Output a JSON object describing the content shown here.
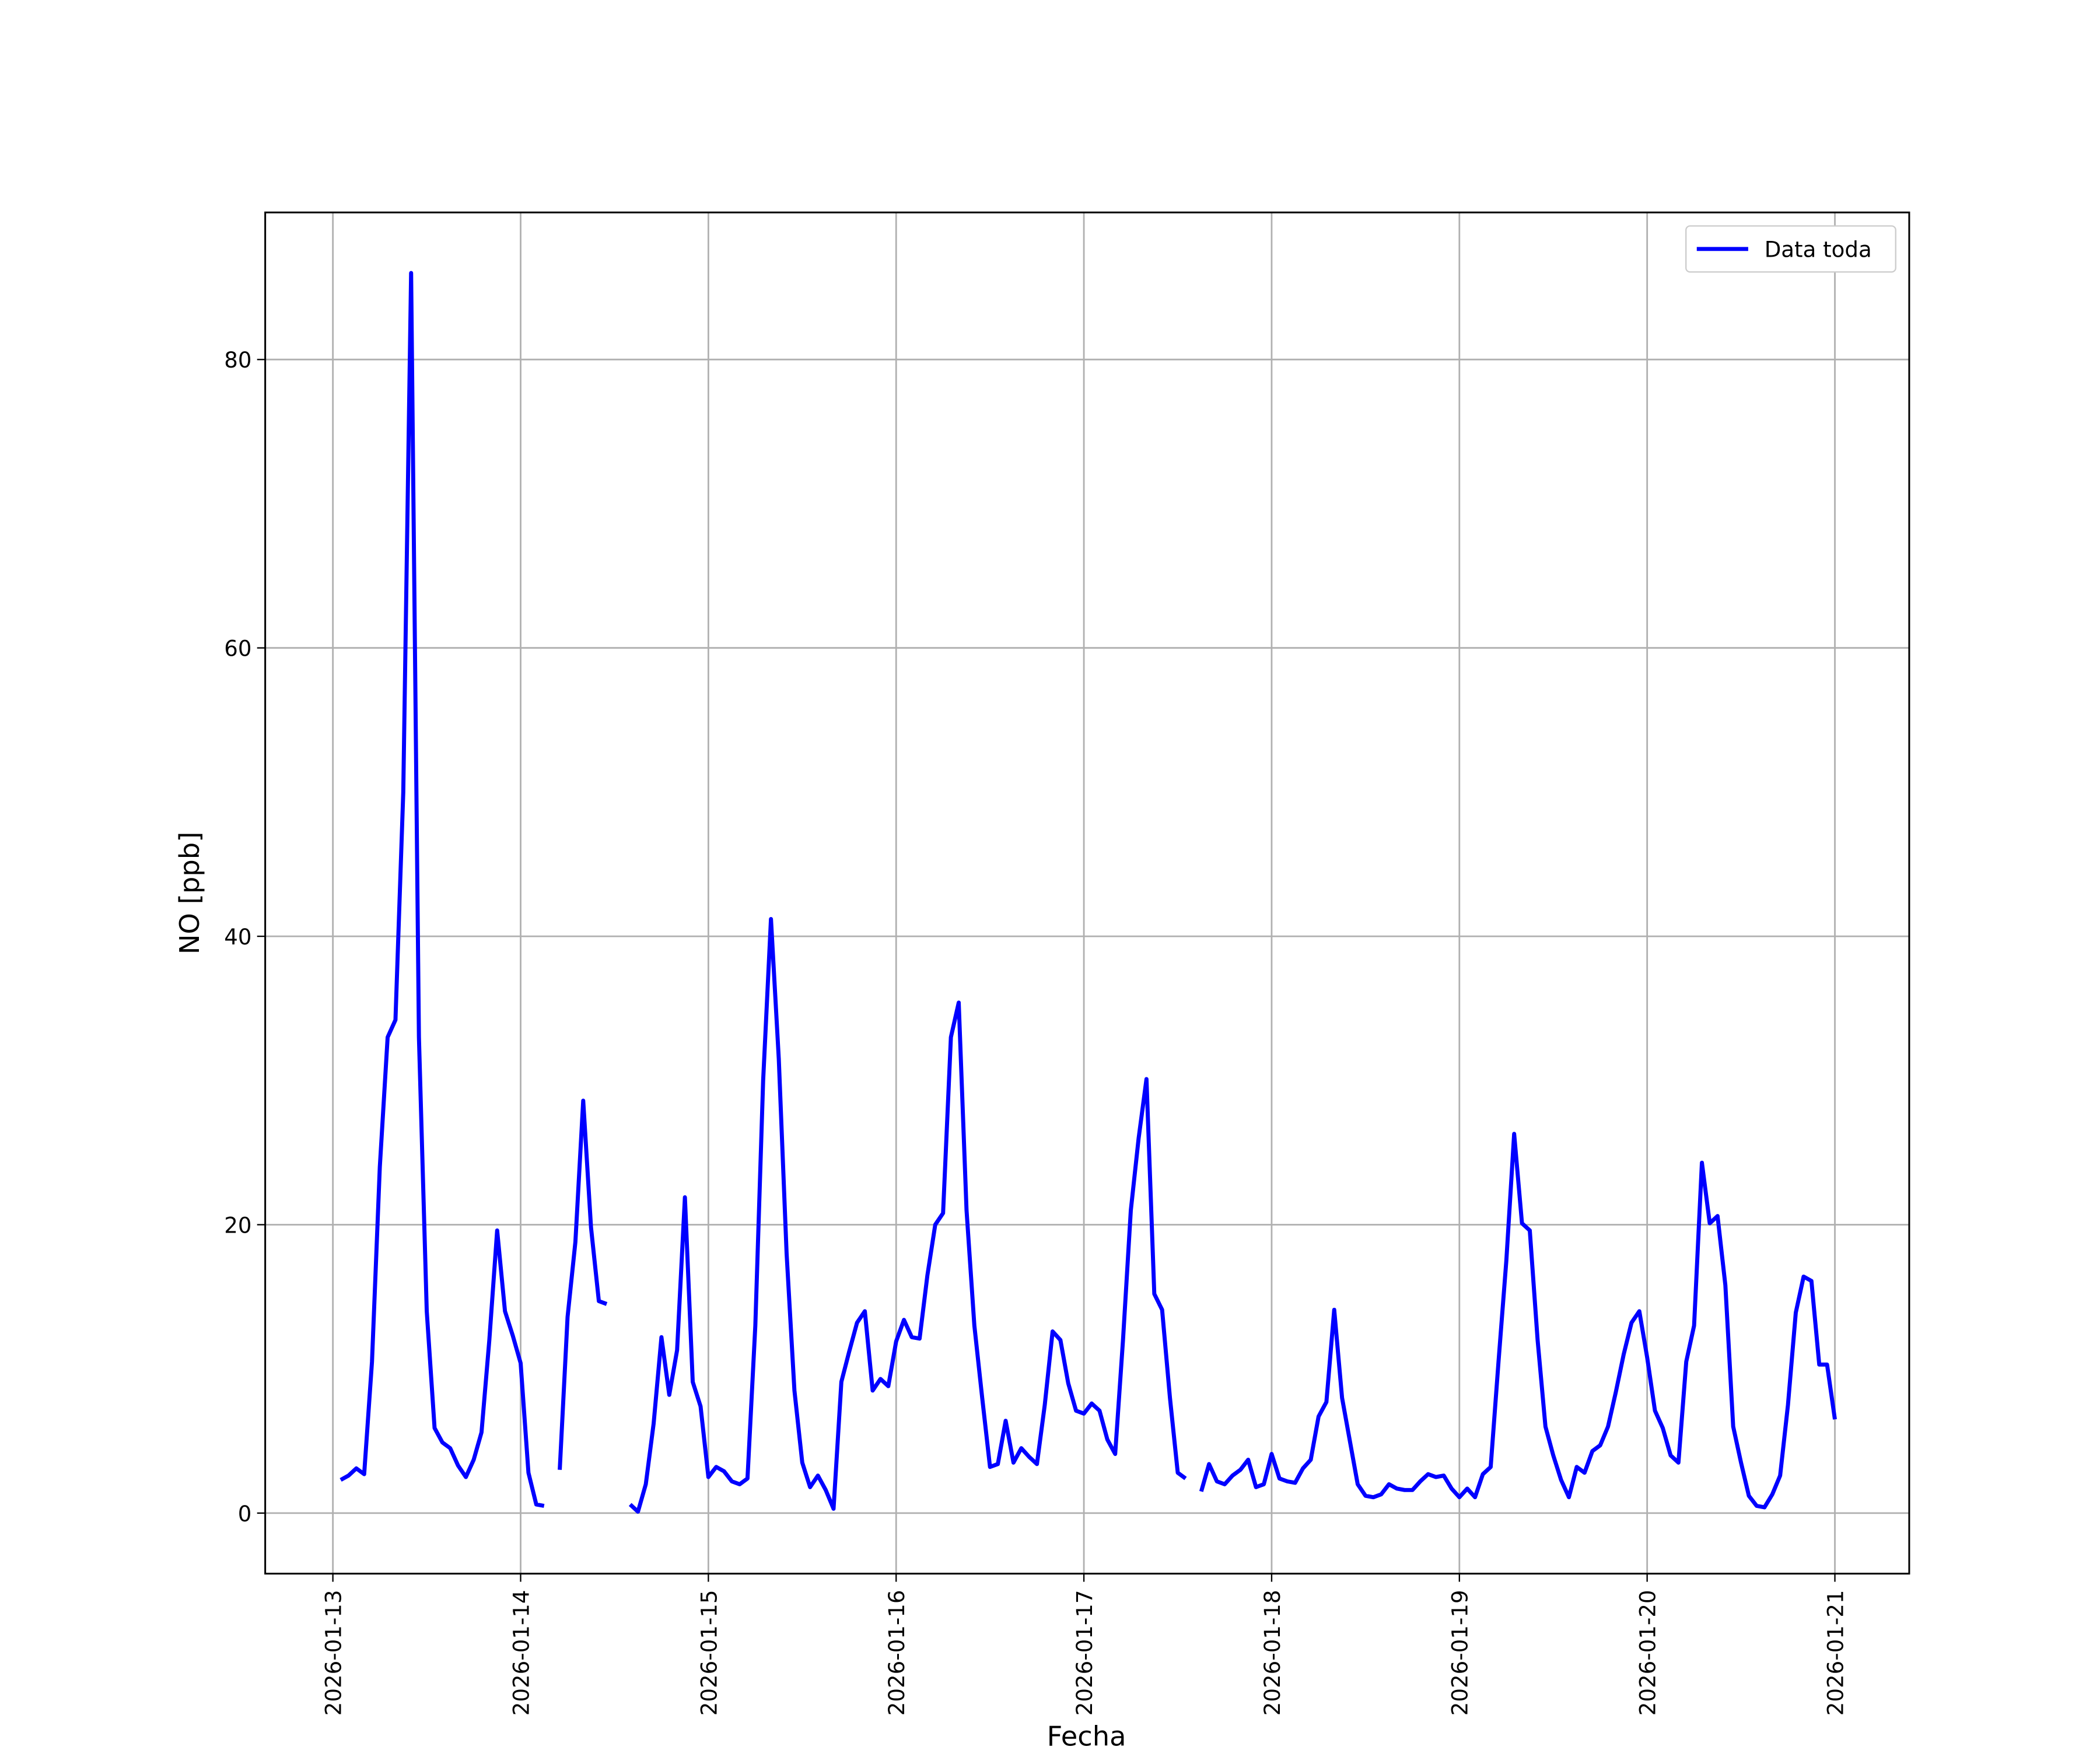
{
  "chart_data": {
    "type": "line",
    "xlabel": "Fecha",
    "ylabel": "NO [ppb]",
    "xlim": [
      "2026-01-12 15:21",
      "2026-01-21 09:30"
    ],
    "ylim": [
      -4.2,
      90.2
    ],
    "yticks": [
      0,
      20,
      40,
      60,
      80
    ],
    "xticks": [
      "2026-01-13",
      "2026-01-14",
      "2026-01-15",
      "2026-01-16",
      "2026-01-17",
      "2026-01-18",
      "2026-01-19",
      "2026-01-20",
      "2026-01-21"
    ],
    "grid": true,
    "legend": "upper right",
    "x": [
      "2026-01-13 01:00",
      "2026-01-13 02:00",
      "2026-01-13 03:00",
      "2026-01-13 04:00",
      "2026-01-13 05:00",
      "2026-01-13 06:00",
      "2026-01-13 07:00",
      "2026-01-13 08:00",
      "2026-01-13 09:00",
      "2026-01-13 10:00",
      "2026-01-13 11:00",
      "2026-01-13 12:00",
      "2026-01-13 13:00",
      "2026-01-13 14:00",
      "2026-01-13 15:00",
      "2026-01-13 16:00",
      "2026-01-13 17:00",
      "2026-01-13 18:00",
      "2026-01-13 19:00",
      "2026-01-13 20:00",
      "2026-01-13 21:00",
      "2026-01-13 22:00",
      "2026-01-13 23:00",
      "2026-01-14 00:00",
      "2026-01-14 01:00",
      "2026-01-14 02:00",
      "2026-01-14 03:00",
      "2026-01-14 04:00",
      "2026-01-14 05:00",
      "2026-01-14 06:00",
      "2026-01-14 07:00",
      "2026-01-14 08:00",
      "2026-01-14 09:00",
      "2026-01-14 10:00",
      "2026-01-14 11:00",
      "2026-01-14 12:00",
      "2026-01-14 13:00",
      "2026-01-14 14:00",
      "2026-01-14 15:00",
      "2026-01-14 16:00",
      "2026-01-14 17:00",
      "2026-01-14 18:00",
      "2026-01-14 19:00",
      "2026-01-14 20:00",
      "2026-01-14 21:00",
      "2026-01-14 22:00",
      "2026-01-14 23:00",
      "2026-01-15 00:00",
      "2026-01-15 01:00",
      "2026-01-15 02:00",
      "2026-01-15 03:00",
      "2026-01-15 04:00",
      "2026-01-15 05:00",
      "2026-01-15 06:00",
      "2026-01-15 07:00",
      "2026-01-15 08:00",
      "2026-01-15 09:00",
      "2026-01-15 10:00",
      "2026-01-15 11:00",
      "2026-01-15 12:00",
      "2026-01-15 13:00",
      "2026-01-15 14:00",
      "2026-01-15 15:00",
      "2026-01-15 16:00",
      "2026-01-15 17:00",
      "2026-01-15 18:00",
      "2026-01-15 19:00",
      "2026-01-15 20:00",
      "2026-01-15 21:00",
      "2026-01-15 22:00",
      "2026-01-15 23:00",
      "2026-01-16 00:00",
      "2026-01-16 01:00",
      "2026-01-16 02:00",
      "2026-01-16 03:00",
      "2026-01-16 04:00",
      "2026-01-16 05:00",
      "2026-01-16 06:00",
      "2026-01-16 07:00",
      "2026-01-16 08:00",
      "2026-01-16 09:00",
      "2026-01-16 10:00",
      "2026-01-16 11:00",
      "2026-01-16 12:00",
      "2026-01-16 13:00",
      "2026-01-16 14:00",
      "2026-01-16 15:00",
      "2026-01-16 16:00",
      "2026-01-16 17:00",
      "2026-01-16 18:00",
      "2026-01-16 19:00",
      "2026-01-16 20:00",
      "2026-01-16 21:00",
      "2026-01-16 22:00",
      "2026-01-16 23:00",
      "2026-01-17 00:00",
      "2026-01-17 01:00",
      "2026-01-17 02:00",
      "2026-01-17 03:00",
      "2026-01-17 04:00",
      "2026-01-17 05:00",
      "2026-01-17 06:00",
      "2026-01-17 07:00",
      "2026-01-17 08:00",
      "2026-01-17 09:00",
      "2026-01-17 10:00",
      "2026-01-17 11:00",
      "2026-01-17 12:00",
      "2026-01-17 13:00",
      "2026-01-17 14:00",
      "2026-01-17 15:00",
      "2026-01-17 16:00",
      "2026-01-17 17:00",
      "2026-01-17 18:00",
      "2026-01-17 19:00",
      "2026-01-17 20:00",
      "2026-01-17 21:00",
      "2026-01-17 22:00",
      "2026-01-17 23:00",
      "2026-01-18 00:00",
      "2026-01-18 01:00",
      "2026-01-18 02:00",
      "2026-01-18 03:00",
      "2026-01-18 04:00",
      "2026-01-18 05:00",
      "2026-01-18 06:00",
      "2026-01-18 07:00",
      "2026-01-18 08:00",
      "2026-01-18 09:00",
      "2026-01-18 10:00",
      "2026-01-18 11:00",
      "2026-01-18 12:00",
      "2026-01-18 13:00",
      "2026-01-18 14:00",
      "2026-01-18 15:00",
      "2026-01-18 16:00",
      "2026-01-18 17:00",
      "2026-01-18 18:00",
      "2026-01-18 19:00",
      "2026-01-18 20:00",
      "2026-01-18 21:00",
      "2026-01-18 22:00",
      "2026-01-18 23:00",
      "2026-01-19 00:00",
      "2026-01-19 01:00",
      "2026-01-19 02:00",
      "2026-01-19 03:00",
      "2026-01-19 04:00",
      "2026-01-19 05:00",
      "2026-01-19 06:00",
      "2026-01-19 07:00",
      "2026-01-19 08:00",
      "2026-01-19 09:00",
      "2026-01-19 10:00",
      "2026-01-19 11:00",
      "2026-01-19 12:00",
      "2026-01-19 13:00",
      "2026-01-19 14:00",
      "2026-01-19 15:00",
      "2026-01-19 16:00",
      "2026-01-19 17:00",
      "2026-01-19 18:00",
      "2026-01-19 19:00",
      "2026-01-19 20:00",
      "2026-01-19 21:00",
      "2026-01-19 22:00",
      "2026-01-19 23:00",
      "2026-01-20 00:00",
      "2026-01-20 01:00",
      "2026-01-20 02:00",
      "2026-01-20 03:00",
      "2026-01-20 04:00",
      "2026-01-20 05:00",
      "2026-01-20 06:00",
      "2026-01-20 07:00",
      "2026-01-20 08:00",
      "2026-01-20 09:00",
      "2026-01-20 10:00",
      "2026-01-20 11:00",
      "2026-01-20 12:00",
      "2026-01-20 13:00",
      "2026-01-20 14:00",
      "2026-01-20 15:00",
      "2026-01-20 16:00",
      "2026-01-20 17:00",
      "2026-01-20 18:00",
      "2026-01-20 19:00",
      "2026-01-20 20:00",
      "2026-01-20 21:00",
      "2026-01-20 22:00",
      "2026-01-20 23:00",
      "2026-01-21 00:00"
    ],
    "series": [
      {
        "name": "Data toda",
        "color": "#0000ff",
        "values": [
          2.3,
          2.6,
          3.1,
          2.7,
          10.5,
          24,
          33,
          34.2,
          50,
          86,
          33,
          14,
          5.9,
          4.9,
          4.5,
          3.3,
          2.5,
          3.7,
          5.6,
          12,
          19.6,
          14,
          12.3,
          10.4,
          2.8,
          0.6,
          0.5,
          null,
          3.0,
          13.6,
          18.8,
          28.6,
          19.8,
          14.7,
          14.5,
          null,
          null,
          0.6,
          0.1,
          2.0,
          6.2,
          12.2,
          8.2,
          11.3,
          21.9,
          9.1,
          7.4,
          2.5,
          3.2,
          2.9,
          2.2,
          2.0,
          2.4,
          13,
          30,
          41.2,
          31.5,
          18,
          8.5,
          3.5,
          1.8,
          2.6,
          1.6,
          0.3,
          9.1,
          11.2,
          13.2,
          14,
          8.5,
          9.3,
          8.8,
          11.9,
          13.4,
          12.2,
          12.1,
          16.5,
          20,
          20.8,
          33,
          35.4,
          21,
          13,
          8,
          3.2,
          3.4,
          6.4,
          3.5,
          4.5,
          3.9,
          3.4,
          7.5,
          12.6,
          12,
          9,
          7.1,
          6.9,
          7.6,
          7.1,
          5.1,
          4.1,
          12,
          21,
          26,
          30.1,
          15.2,
          14.1,
          8,
          2.8,
          2.4,
          null,
          1.5,
          3.4,
          2.2,
          2.0,
          2.6,
          3.0,
          3.7,
          1.8,
          2.0,
          4.1,
          2.4,
          2.2,
          2.1,
          3.1,
          3.7,
          6.7,
          7.7,
          14.1,
          8,
          5,
          2.0,
          1.2,
          1.1,
          1.3,
          2.0,
          1.7,
          1.6,
          1.6,
          2.2,
          2.7,
          2.5,
          2.6,
          1.7,
          1.1,
          1.7,
          1.1,
          2.7,
          3.2,
          10.5,
          17.5,
          26.3,
          20.1,
          19.6,
          12,
          6,
          4,
          2.3,
          1.1,
          3.2,
          2.8,
          4.3,
          4.7,
          6,
          8.4,
          11,
          13.2,
          14,
          10.8,
          7.1,
          5.9,
          4,
          3.5,
          10.5,
          13,
          24.3,
          20.1,
          20.6,
          15.8,
          6,
          3.5,
          1.2,
          0.5,
          0.4,
          1.3,
          2.6,
          7.5,
          13.9,
          16.4,
          16.1,
          10.3,
          10.3,
          6.5
        ]
      }
    ]
  }
}
